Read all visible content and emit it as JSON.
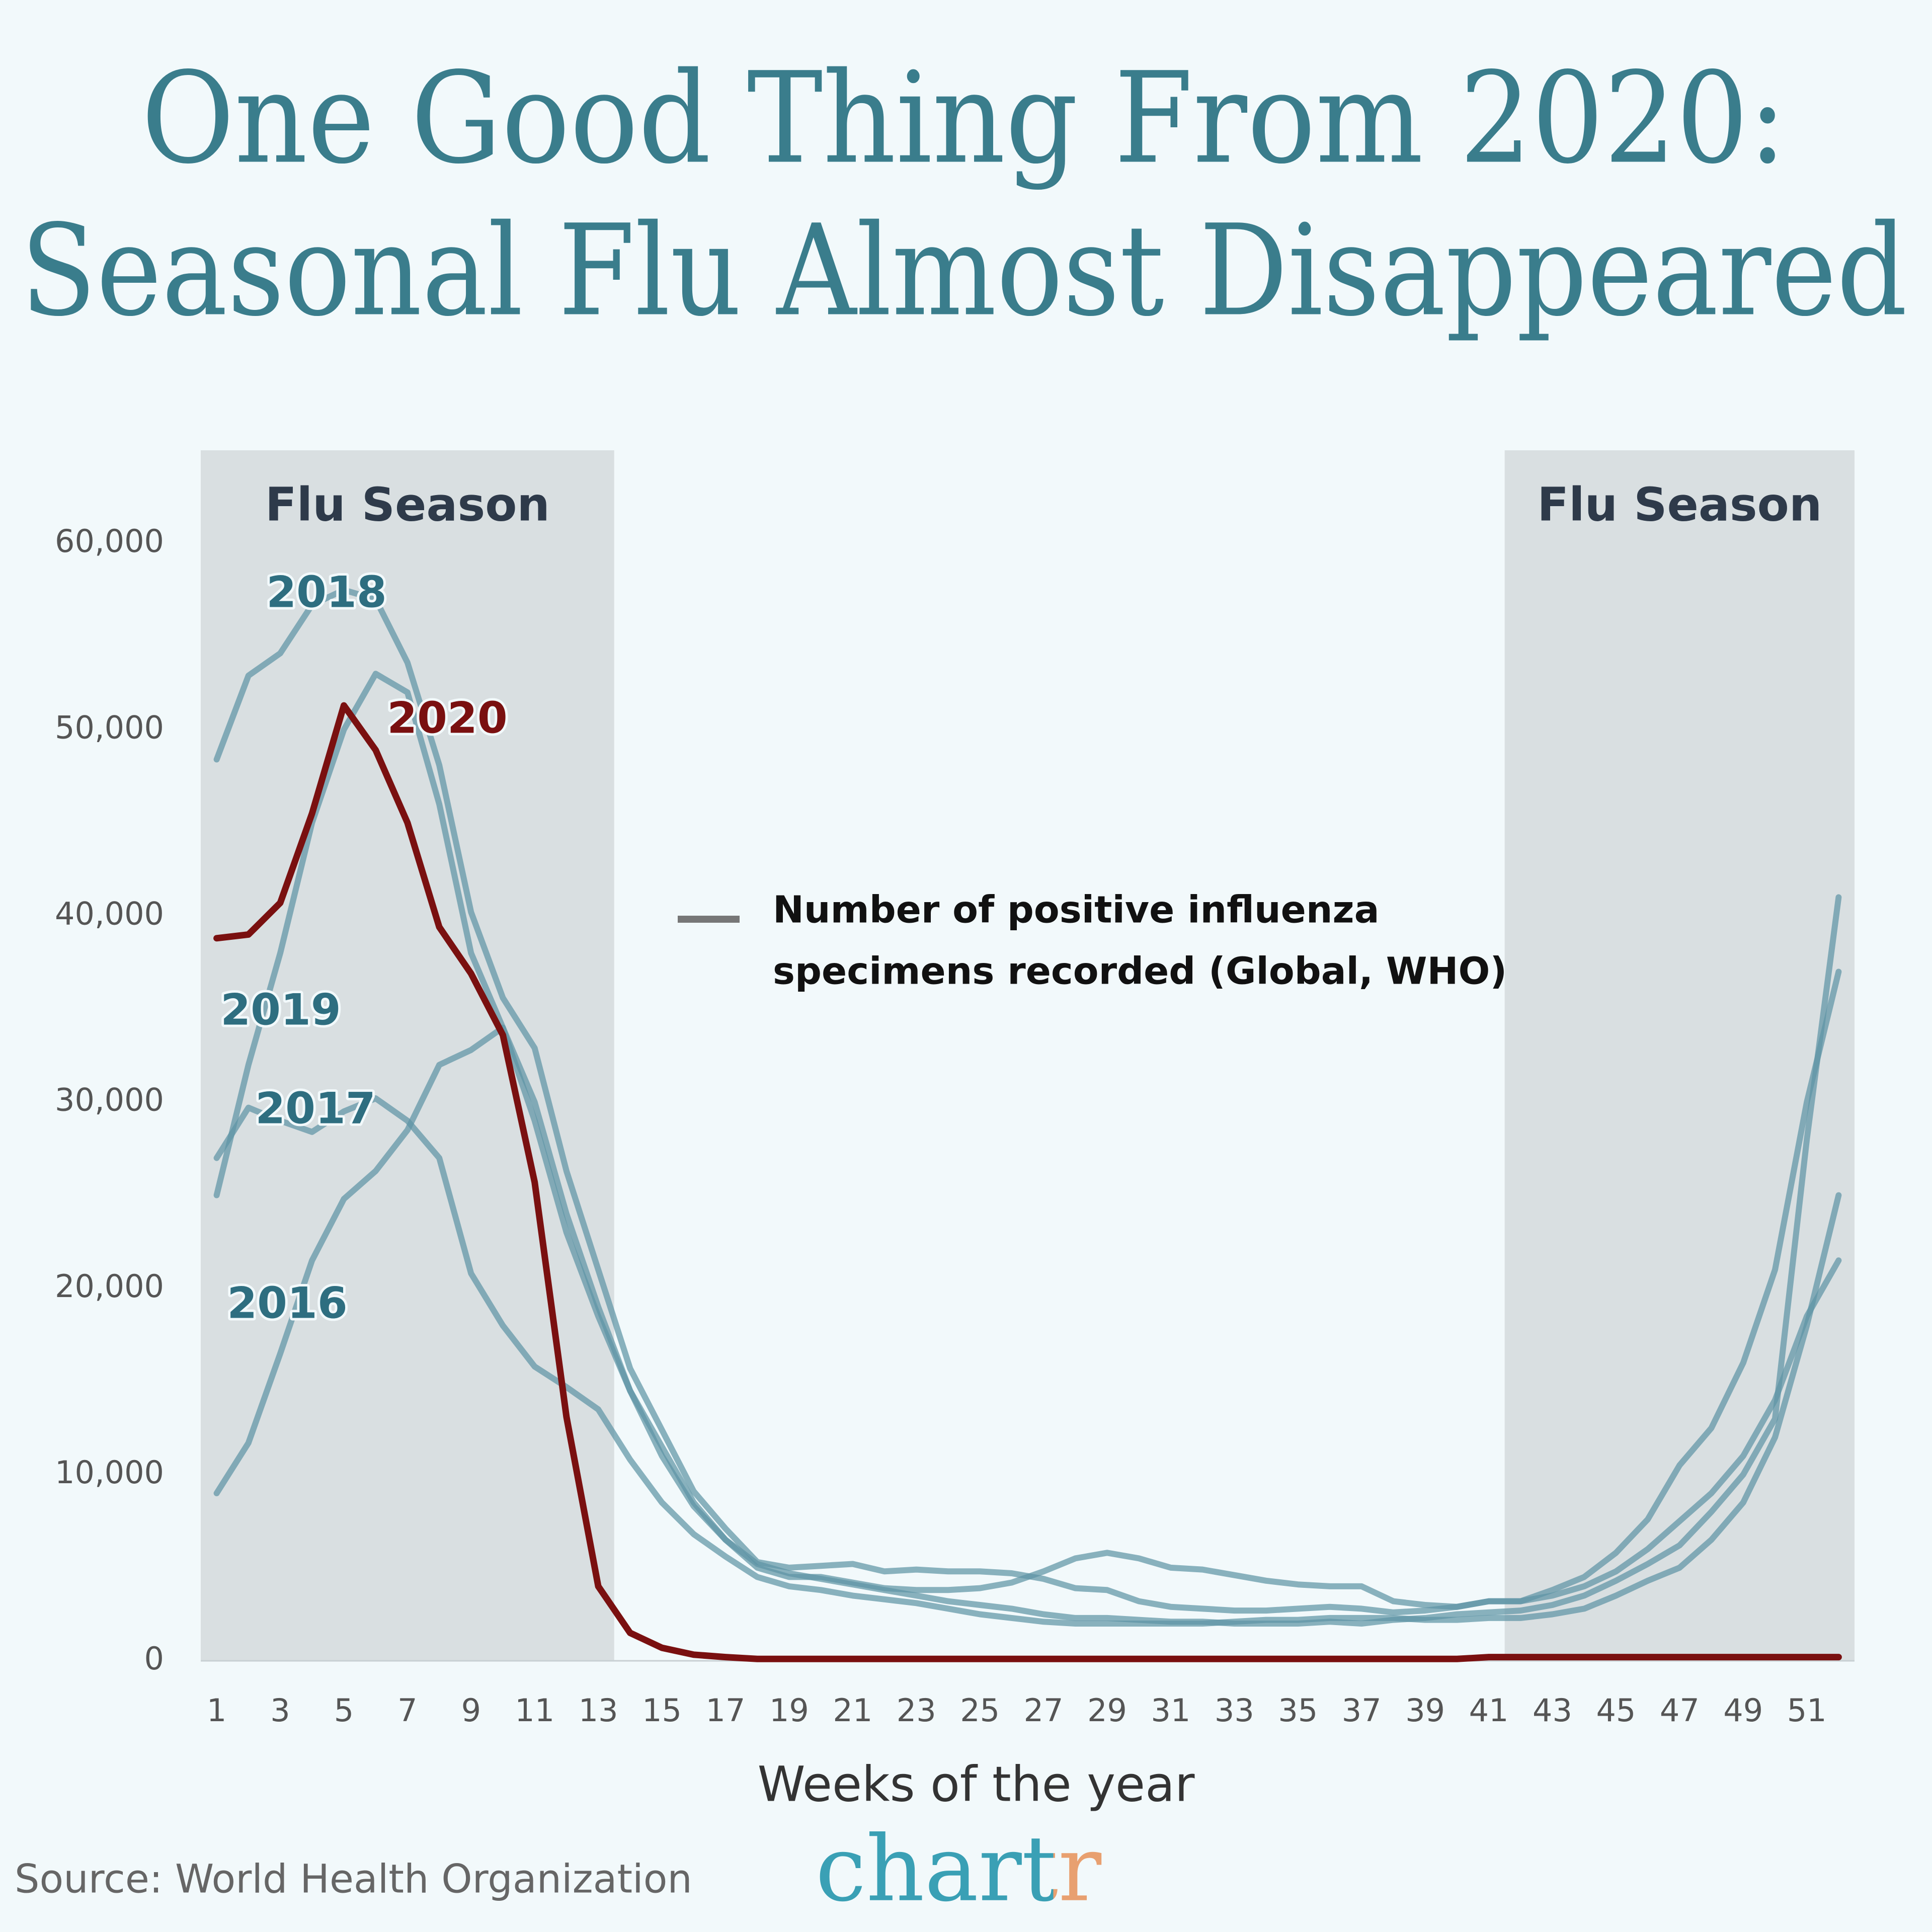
{
  "chart_data": {
    "type": "line",
    "title": [
      "One Good Thing From 2020:",
      "Seasonal Flu Almost Disappeared"
    ],
    "xlabel": "Weeks of the year",
    "source": "Source: World Health Organization",
    "brand": "chartr",
    "x": [
      1,
      2,
      3,
      4,
      5,
      6,
      7,
      8,
      9,
      10,
      11,
      12,
      13,
      14,
      15,
      16,
      17,
      18,
      19,
      20,
      21,
      22,
      23,
      24,
      25,
      26,
      27,
      28,
      29,
      30,
      31,
      32,
      33,
      34,
      35,
      36,
      37,
      38,
      39,
      40,
      41,
      42,
      43,
      44,
      45,
      46,
      47,
      48,
      49,
      50,
      51,
      52
    ],
    "xlim": [
      0.5,
      52.5
    ],
    "xticks": [
      1,
      3,
      5,
      7,
      9,
      11,
      13,
      15,
      17,
      19,
      21,
      23,
      25,
      27,
      29,
      31,
      33,
      35,
      37,
      39,
      41,
      43,
      45,
      47,
      49,
      51
    ],
    "ylim": [
      0,
      65000
    ],
    "yticks": [
      0,
      {
        "value": 10000,
        "label": "10,000"
      },
      {
        "value": 20000,
        "label": "20,000"
      },
      {
        "value": 30000,
        "label": "30,000"
      },
      {
        "value": 40000,
        "label": "40,000"
      },
      {
        "value": 50000,
        "label": "50,000"
      },
      {
        "value": 60000,
        "label": "60,000"
      }
    ],
    "grid": false,
    "shaded_regions": [
      {
        "label": "Flu Season",
        "x": [
          0.5,
          13.5
        ],
        "color": "#d9dfe1"
      },
      {
        "label": "Flu Season",
        "x": [
          41.5,
          52.5
        ],
        "color": "#d9dfe1"
      }
    ],
    "legend": {
      "color": "#777777",
      "lines": [
        "Number of positive influenza",
        "specimens recorded (Global, WHO)"
      ]
    },
    "series": [
      {
        "name": "2016",
        "color": "#5e94a5",
        "values": [
          9000,
          11700,
          16500,
          21500,
          24800,
          26300,
          28500,
          32000,
          32800,
          34000,
          29000,
          23000,
          18500,
          14500,
          11500,
          8500,
          6500,
          5000,
          4500,
          4500,
          4200,
          3900,
          3800,
          3800,
          3900,
          4200,
          4800,
          5500,
          5800,
          5500,
          5000,
          4900,
          4600,
          4300,
          4100,
          4000,
          4000,
          3200,
          3000,
          2900,
          3200,
          3200,
          3500,
          4000,
          4800,
          6000,
          7500,
          9000,
          11000,
          14000,
          18500,
          21500
        ]
      },
      {
        "name": "2017",
        "color": "#5e94a5",
        "values": [
          27000,
          29700,
          29000,
          28400,
          29500,
          30200,
          29000,
          27000,
          20800,
          18000,
          15800,
          14700,
          13500,
          10800,
          8500,
          6800,
          5600,
          4500,
          4000,
          3800,
          3500,
          3300,
          3100,
          2800,
          2500,
          2300,
          2100,
          2000,
          2000,
          2000,
          2000,
          2000,
          2100,
          2200,
          2200,
          2300,
          2300,
          2300,
          2200,
          2200,
          2300,
          2300,
          2500,
          2800,
          3500,
          4300,
          5000,
          6500,
          8500,
          12000,
          18000,
          25000
        ]
      },
      {
        "name": "2018",
        "color": "#5e94a5",
        "values": [
          48400,
          52900,
          54100,
          56700,
          57500,
          57000,
          53600,
          48100,
          40200,
          35600,
          32900,
          26300,
          21000,
          15700,
          12400,
          9100,
          7100,
          5300,
          5000,
          5100,
          5200,
          4800,
          4900,
          4800,
          4800,
          4700,
          4400,
          3900,
          3800,
          3200,
          2900,
          2800,
          2700,
          2700,
          2800,
          2900,
          2800,
          2600,
          2700,
          2900,
          3200,
          3200,
          3800,
          4500,
          5800,
          7600,
          10500,
          12500,
          16000,
          21000,
          30000,
          37000
        ]
      },
      {
        "name": "2019",
        "color": "#5e94a5",
        "values": [
          25000,
          32000,
          38000,
          45000,
          50000,
          53000,
          52000,
          46000,
          38000,
          34000,
          30000,
          24000,
          19000,
          14500,
          11000,
          8300,
          6500,
          5200,
          4700,
          4400,
          4100,
          3800,
          3500,
          3200,
          3000,
          2800,
          2500,
          2300,
          2300,
          2200,
          2100,
          2100,
          2000,
          2000,
          2000,
          2100,
          2000,
          2200,
          2300,
          2500,
          2600,
          2700,
          3000,
          3500,
          4300,
          5200,
          6200,
          8000,
          10000,
          13000,
          28000,
          41000
        ]
      },
      {
        "name": "2020",
        "color": "#7a1010",
        "values": [
          38800,
          39000,
          40700,
          45500,
          51300,
          48900,
          45000,
          39400,
          36900,
          33600,
          25700,
          13100,
          4000,
          1500,
          700,
          330,
          200,
          100,
          100,
          100,
          100,
          100,
          100,
          100,
          100,
          100,
          100,
          100,
          100,
          100,
          100,
          100,
          100,
          100,
          100,
          100,
          100,
          100,
          100,
          100,
          200,
          200,
          200,
          200,
          200,
          200,
          200,
          200,
          200,
          200,
          200,
          200
        ]
      }
    ]
  }
}
